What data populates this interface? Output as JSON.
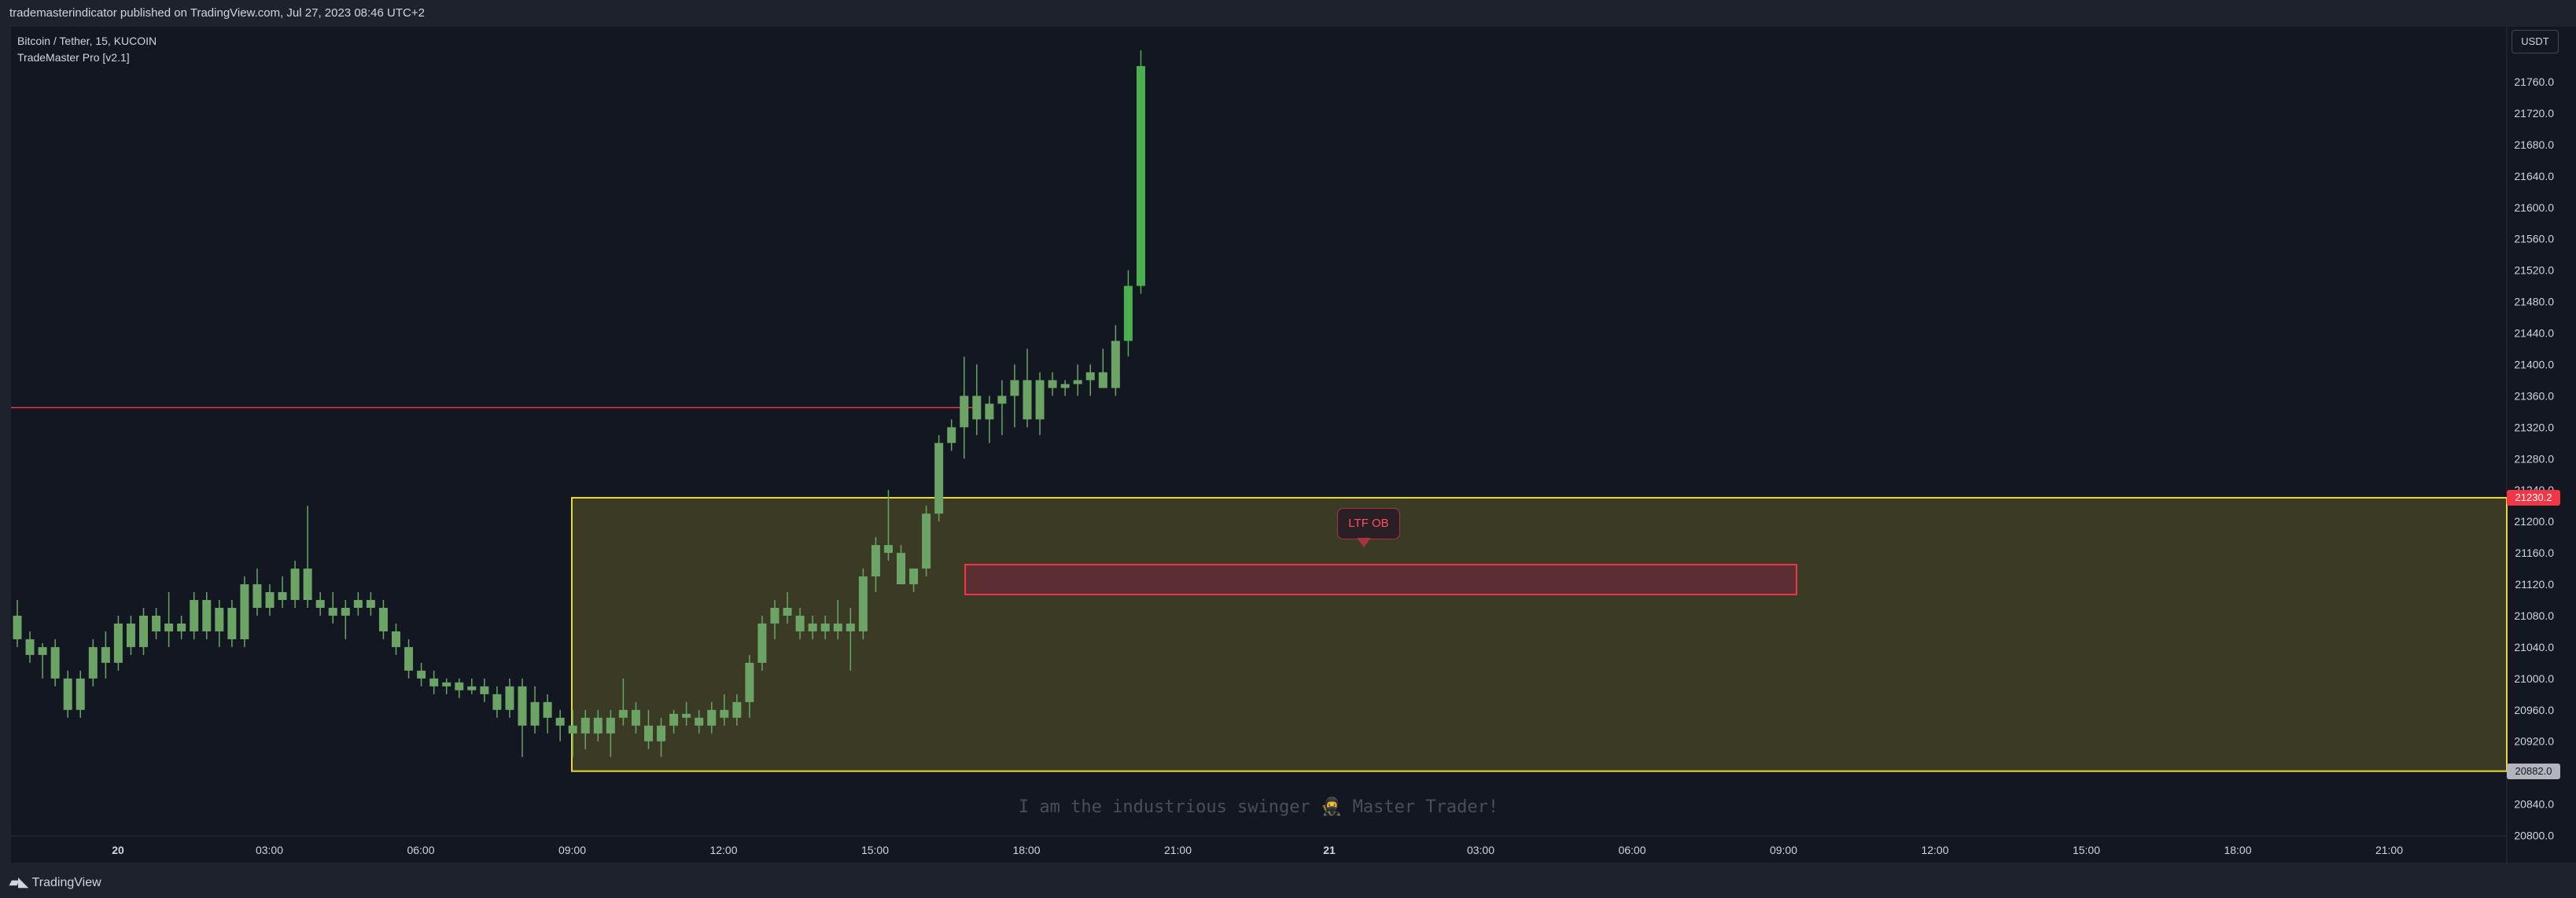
{
  "header": {
    "publisher_text": "trademasterindicator published on TradingView.com, Jul 27, 2023 08:46 UTC+2"
  },
  "legend": {
    "symbol": "Bitcoin / Tether, 15, KUCOIN",
    "indicator": "TradeMaster Pro [v2.1]"
  },
  "currency_button": "USDT",
  "watermark": "I am the industrious swinger 🥷 Master Trader!",
  "footer": {
    "logo_mark": "𝟭𝟳",
    "brand": "TradingView"
  },
  "annotations": {
    "ltf_ob_label": "LTF OB"
  },
  "colors": {
    "background": "#131722",
    "up": "#6ba464",
    "down": "#6ba464",
    "breakout_up": "#4caf50",
    "red_line": "#f23645",
    "yellow_zone_border": "#e8d83a",
    "yellow_zone_fill": "#3b3a25",
    "red_zone_border": "#f23645",
    "red_zone_fill": "#5b2e33"
  },
  "chart_data": {
    "type": "candlestick",
    "symbol": "Bitcoin / Tether",
    "timeframe": "15",
    "exchange": "KUCOIN",
    "x_ticks": [
      "20",
      "03:00",
      "06:00",
      "09:00",
      "12:00",
      "15:00",
      "18:00",
      "21:00",
      "21",
      "03:00",
      "06:00",
      "09:00",
      "12:00",
      "15:00",
      "18:00",
      "21:00"
    ],
    "y_ticks": [
      "21760.0",
      "21720.0",
      "21680.0",
      "21640.0",
      "21600.0",
      "21560.0",
      "21520.0",
      "21480.0",
      "21440.0",
      "21400.0",
      "21360.0",
      "21320.0",
      "21280.0",
      "21240.0",
      "21200.0",
      "21160.0",
      "21120.0",
      "21080.0",
      "21040.0",
      "21000.0",
      "20960.0",
      "20920.0",
      "20840.0",
      "20800.0"
    ],
    "ylim": [
      20800,
      21790
    ],
    "price_tags": [
      {
        "value": "21230.2",
        "color": "#f23645",
        "text_color": "#ffffff"
      },
      {
        "value": "20882.0",
        "color": "#b2b5be",
        "text_color": "#131722"
      }
    ],
    "zones": [
      {
        "name": "yellow-premium-zone",
        "from_time": "09:00",
        "price_top": 21230.2,
        "price_bottom": 20882.0,
        "extends_right": true
      },
      {
        "name": "ltf-ob-zone",
        "from_time": "17:15",
        "to_time": "09:15",
        "price_top": 21145,
        "price_bottom": 21107
      }
    ],
    "lines": [
      {
        "name": "red-level-line",
        "price": 21345,
        "from_time": "00:00 (start)",
        "to_time": "17:15"
      }
    ],
    "candles_ohlc": [
      [
        21080,
        21100,
        21040,
        21050
      ],
      [
        21050,
        21060,
        21020,
        21030
      ],
      [
        21030,
        21045,
        21000,
        21040
      ],
      [
        21040,
        21050,
        20990,
        21000
      ],
      [
        21000,
        21010,
        20950,
        20960
      ],
      [
        20960,
        21010,
        20950,
        21000
      ],
      [
        21000,
        21050,
        20990,
        21040
      ],
      [
        21040,
        21060,
        21000,
        21020
      ],
      [
        21020,
        21080,
        21010,
        21070
      ],
      [
        21070,
        21080,
        21030,
        21040
      ],
      [
        21040,
        21090,
        21030,
        21080
      ],
      [
        21080,
        21090,
        21050,
        21060
      ],
      [
        21060,
        21110,
        21040,
        21070
      ],
      [
        21070,
        21080,
        21050,
        21060
      ],
      [
        21060,
        21110,
        21050,
        21100
      ],
      [
        21100,
        21110,
        21050,
        21060
      ],
      [
        21060,
        21100,
        21040,
        21090
      ],
      [
        21090,
        21100,
        21040,
        21050
      ],
      [
        21050,
        21130,
        21040,
        21120
      ],
      [
        21120,
        21140,
        21080,
        21090
      ],
      [
        21090,
        21120,
        21080,
        21110
      ],
      [
        21110,
        21130,
        21090,
        21100
      ],
      [
        21100,
        21150,
        21090,
        21140
      ],
      [
        21140,
        21220,
        21090,
        21100
      ],
      [
        21100,
        21110,
        21080,
        21090
      ],
      [
        21090,
        21110,
        21070,
        21080
      ],
      [
        21080,
        21100,
        21050,
        21090
      ],
      [
        21090,
        21110,
        21080,
        21100
      ],
      [
        21100,
        21110,
        21080,
        21090
      ],
      [
        21090,
        21100,
        21050,
        21060
      ],
      [
        21060,
        21070,
        21030,
        21040
      ],
      [
        21040,
        21050,
        21000,
        21010
      ],
      [
        21010,
        21020,
        20990,
        21000
      ],
      [
        21000,
        21010,
        20980,
        20990
      ],
      [
        20990,
        21000,
        20980,
        20995
      ],
      [
        20995,
        21000,
        20975,
        20985
      ],
      [
        20985,
        21000,
        20980,
        20990
      ],
      [
        20990,
        21000,
        20970,
        20980
      ],
      [
        20980,
        20990,
        20950,
        20960
      ],
      [
        20960,
        21000,
        20950,
        20990
      ],
      [
        20990,
        21000,
        20900,
        20940
      ],
      [
        20940,
        20990,
        20930,
        20970
      ],
      [
        20970,
        20980,
        20930,
        20950
      ],
      [
        20950,
        20960,
        20920,
        20940
      ],
      [
        20940,
        20960,
        20900,
        20930
      ],
      [
        20930,
        20960,
        20910,
        20950
      ],
      [
        20950,
        20960,
        20920,
        20930
      ],
      [
        20930,
        20960,
        20900,
        20950
      ],
      [
        20950,
        21000,
        20940,
        20960
      ],
      [
        20960,
        20970,
        20930,
        20940
      ],
      [
        20940,
        20960,
        20910,
        20920
      ],
      [
        20920,
        20950,
        20900,
        20940
      ],
      [
        20940,
        20960,
        20930,
        20955
      ],
      [
        20955,
        20970,
        20940,
        20950
      ],
      [
        20950,
        20960,
        20930,
        20940
      ],
      [
        20940,
        20970,
        20930,
        20960
      ],
      [
        20960,
        20980,
        20940,
        20950
      ],
      [
        20950,
        20980,
        20940,
        20970
      ],
      [
        20970,
        21030,
        20950,
        21020
      ],
      [
        21020,
        21080,
        21010,
        21070
      ],
      [
        21070,
        21100,
        21050,
        21090
      ],
      [
        21090,
        21110,
        21070,
        21080
      ],
      [
        21080,
        21090,
        21050,
        21060
      ],
      [
        21060,
        21080,
        21050,
        21070
      ],
      [
        21070,
        21080,
        21050,
        21060
      ],
      [
        21060,
        21100,
        21050,
        21070
      ],
      [
        21070,
        21090,
        21010,
        21060
      ],
      [
        21060,
        21140,
        21050,
        21130
      ],
      [
        21130,
        21180,
        21110,
        21170
      ],
      [
        21170,
        21240,
        21150,
        21160
      ],
      [
        21160,
        21170,
        21120,
        21120
      ],
      [
        21120,
        21140,
        21110,
        21140
      ],
      [
        21140,
        21220,
        21130,
        21210
      ],
      [
        21210,
        21310,
        21200,
        21300
      ],
      [
        21300,
        21330,
        21290,
        21320
      ],
      [
        21320,
        21410,
        21280,
        21360
      ],
      [
        21360,
        21400,
        21310,
        21330
      ],
      [
        21330,
        21360,
        21300,
        21350
      ],
      [
        21350,
        21380,
        21310,
        21360
      ],
      [
        21360,
        21400,
        21320,
        21380
      ],
      [
        21380,
        21420,
        21320,
        21330
      ],
      [
        21330,
        21390,
        21310,
        21380
      ],
      [
        21380,
        21390,
        21360,
        21370
      ],
      [
        21370,
        21380,
        21360,
        21375
      ],
      [
        21375,
        21400,
        21360,
        21380
      ],
      [
        21380,
        21400,
        21360,
        21390
      ],
      [
        21390,
        21420,
        21370,
        21370
      ],
      [
        21370,
        21450,
        21360,
        21430
      ],
      [
        21430,
        21520,
        21410,
        21500
      ],
      [
        21500,
        21800,
        21490,
        21780
      ]
    ],
    "grid": false,
    "legend_position": "top-left"
  }
}
